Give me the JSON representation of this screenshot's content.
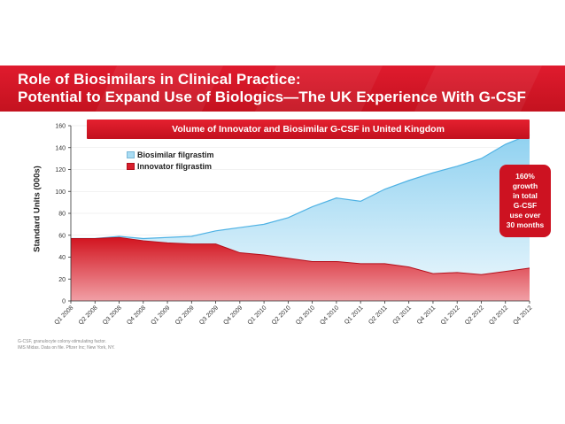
{
  "header": {
    "title_line1": "Role of Biosimilars in Clinical Practice:",
    "title_line2": "Potential to Expand Use of Biologics—The UK Experience With G-CSF"
  },
  "callout": {
    "lines": [
      "160%",
      "growth",
      "in total",
      "G-CSF",
      "use over",
      "30 months"
    ]
  },
  "footnotes": [
    "G-CSF, granulocyte colony-stimulating factor.",
    "IMS Midas. Data on file. Pfizer Inc; New York, NY."
  ],
  "colors": {
    "header_red": "#d0141f",
    "innovator_red": "#d81e2c",
    "biosimilar_blue": "#a9dcf3"
  },
  "chart_data": {
    "type": "area",
    "stacked": true,
    "title": "Volume of Innovator and Biosimilar G-CSF in United Kingdom",
    "xlabel": "",
    "ylabel": "Standard Units (000s)",
    "ylim": [
      0,
      160
    ],
    "yticks": [
      0,
      20,
      40,
      60,
      80,
      100,
      120,
      140,
      160
    ],
    "legend_position": "top-left",
    "categories": [
      "Q1 2008",
      "Q2 2008",
      "Q3 2008",
      "Q4 2008",
      "Q1 2009",
      "Q2 2009",
      "Q3 2009",
      "Q4 2009",
      "Q1 2010",
      "Q2 2010",
      "Q3 2010",
      "Q4 2010",
      "Q1 2011",
      "Q2 2011",
      "Q3 2011",
      "Q4 2011",
      "Q1 2012",
      "Q2 2012",
      "Q3 2012",
      "Q4 2012"
    ],
    "series": [
      {
        "name": "Innovator filgrastim",
        "color": "#d81e2c",
        "values": [
          57,
          57,
          58,
          55,
          53,
          52,
          52,
          44,
          42,
          39,
          36,
          36,
          34,
          34,
          31,
          25,
          26,
          24,
          27,
          30
        ]
      },
      {
        "name": "Biosimilar filgrastim",
        "color": "#a9dcf3",
        "values": [
          0,
          0,
          1,
          2,
          5,
          7,
          12,
          23,
          28,
          37,
          50,
          58,
          57,
          68,
          79,
          92,
          97,
          106,
          116,
          122
        ]
      }
    ]
  }
}
